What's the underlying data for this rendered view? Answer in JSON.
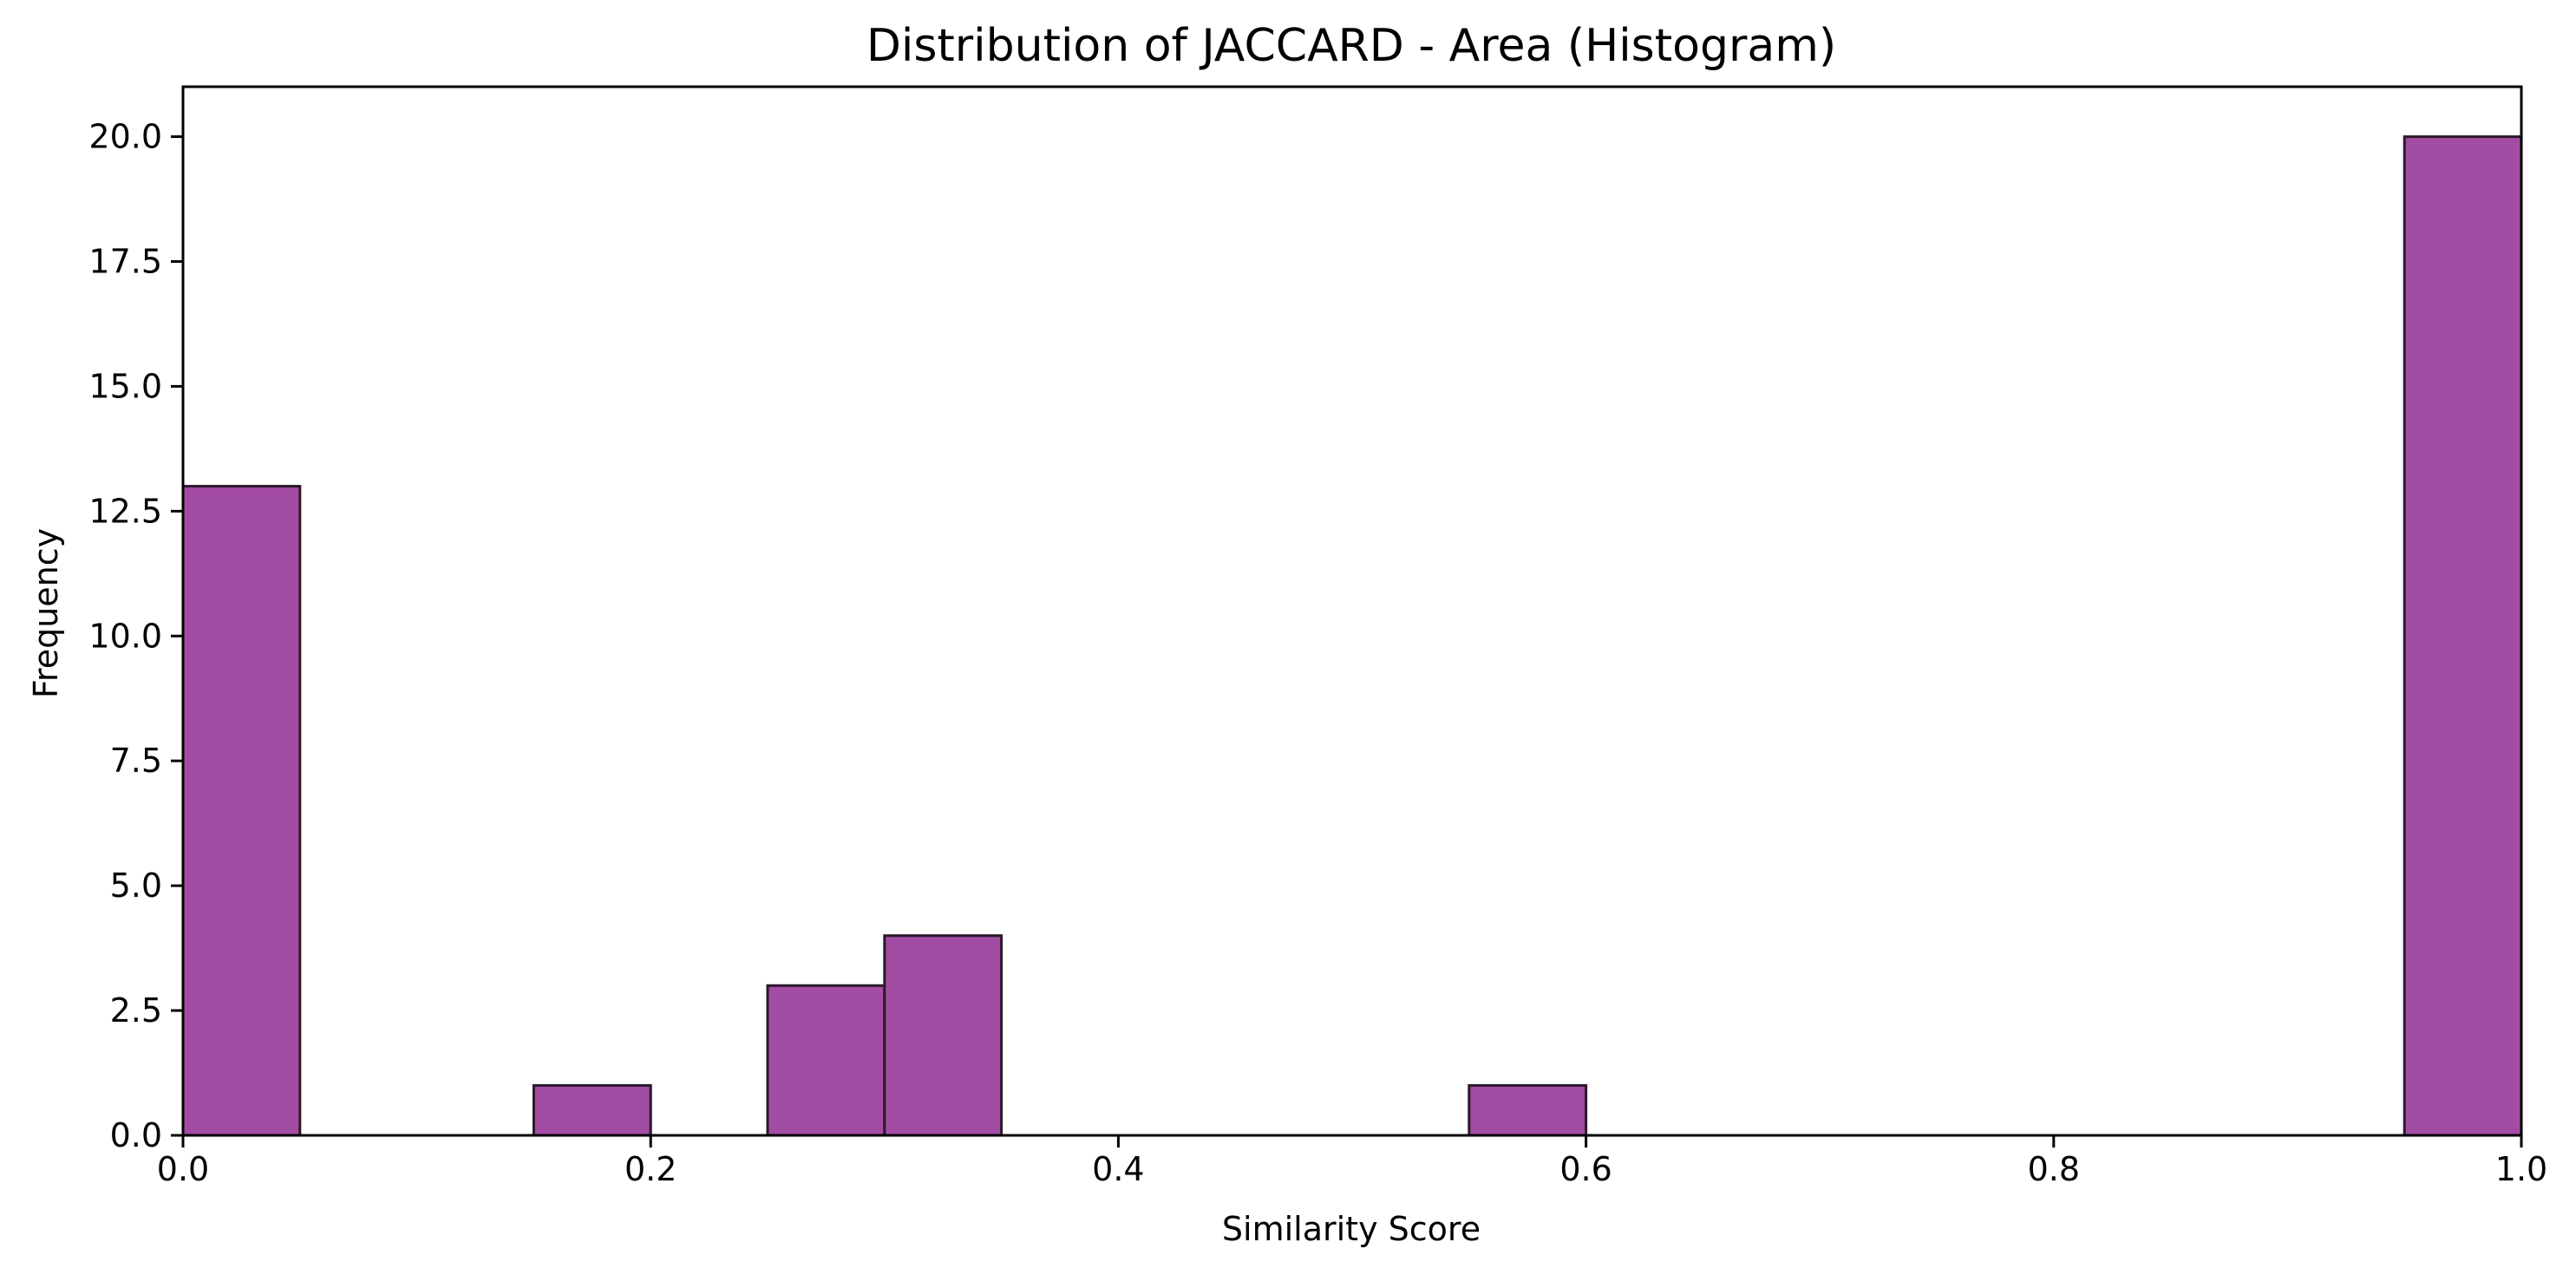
{
  "chart_data": {
    "type": "bar",
    "title": "Distribution of JACCARD - Area (Histogram)",
    "xlabel": "Similarity Score",
    "ylabel": "Frequency",
    "xlim": [
      0,
      1
    ],
    "ylim": [
      0,
      21
    ],
    "bin_width": 0.05,
    "bins": [
      {
        "start": 0.0,
        "end": 0.05,
        "count": 13
      },
      {
        "start": 0.15,
        "end": 0.2,
        "count": 1
      },
      {
        "start": 0.25,
        "end": 0.3,
        "count": 3
      },
      {
        "start": 0.3,
        "end": 0.35,
        "count": 4
      },
      {
        "start": 0.55,
        "end": 0.6,
        "count": 1
      },
      {
        "start": 0.95,
        "end": 1.0,
        "count": 20
      }
    ],
    "x_ticks": [
      {
        "value": 0.0,
        "label": "0.0"
      },
      {
        "value": 0.2,
        "label": "0.2"
      },
      {
        "value": 0.4,
        "label": "0.4"
      },
      {
        "value": 0.6,
        "label": "0.6"
      },
      {
        "value": 0.8,
        "label": "0.8"
      },
      {
        "value": 1.0,
        "label": "1.0"
      }
    ],
    "y_ticks": [
      {
        "value": 0.0,
        "label": "0.0"
      },
      {
        "value": 2.5,
        "label": "2.5"
      },
      {
        "value": 5.0,
        "label": "5.0"
      },
      {
        "value": 7.5,
        "label": "7.5"
      },
      {
        "value": 10.0,
        "label": "10.0"
      },
      {
        "value": 12.5,
        "label": "12.5"
      },
      {
        "value": 15.0,
        "label": "15.0"
      },
      {
        "value": 17.5,
        "label": "17.5"
      },
      {
        "value": 20.0,
        "label": "20.0"
      }
    ],
    "grid": false,
    "colors": {
      "bar_fill": "#a34ca3",
      "bar_edge": "#2b1a2b",
      "axes": "#000000"
    }
  }
}
